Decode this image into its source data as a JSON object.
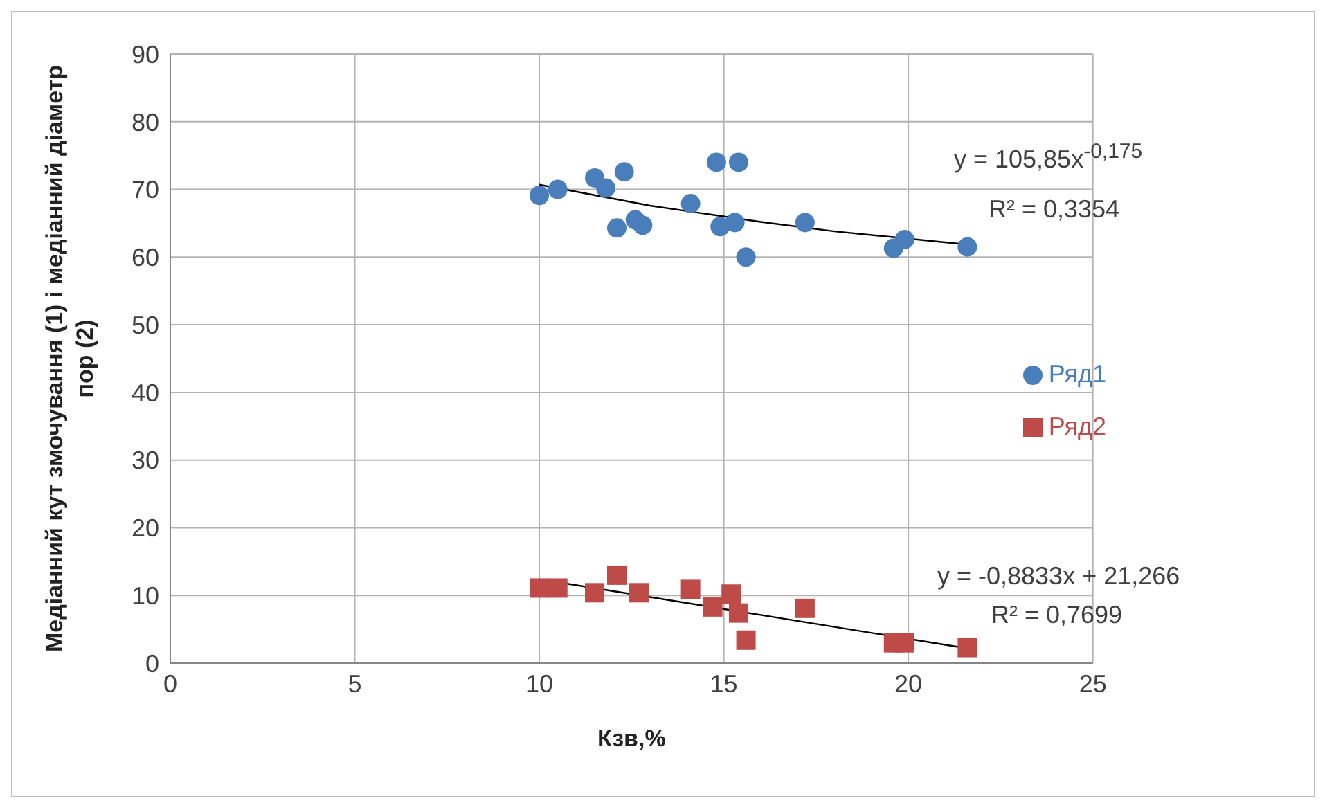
{
  "chart_data": {
    "type": "scatter",
    "xlabel": "Кзв,%",
    "ylabel": "Медіанний кут змочування (1) і медіанний діаметр пор (2)",
    "xlim": [
      0,
      25
    ],
    "xticks": [
      0,
      5,
      10,
      15,
      20,
      25
    ],
    "ylim": [
      0,
      90
    ],
    "yticks": [
      0,
      10,
      20,
      30,
      40,
      50,
      60,
      70,
      80,
      90
    ],
    "grid": true,
    "legend": "right",
    "series": [
      {
        "name": "Ряд1",
        "color": "#4a7ebb",
        "marker": "circle",
        "x": [
          10.0,
          10.5,
          11.5,
          11.8,
          12.3,
          12.1,
          12.6,
          12.8,
          14.1,
          14.8,
          15.4,
          14.9,
          15.3,
          15.6,
          17.2,
          19.9,
          19.6,
          21.6
        ],
        "values": [
          69.1,
          70.0,
          71.7,
          70.2,
          72.6,
          64.3,
          65.5,
          64.7,
          67.9,
          74.0,
          74.0,
          64.5,
          65.1,
          60.0,
          65.1,
          62.6,
          61.3,
          61.5
        ]
      },
      {
        "name": "Ряд2",
        "color": "#be4b48",
        "marker": "square",
        "x": [
          10.0,
          10.5,
          11.5,
          12.1,
          12.7,
          14.1,
          14.7,
          15.2,
          15.4,
          15.6,
          17.2,
          19.6,
          19.9,
          21.6
        ],
        "values": [
          11.1,
          11.1,
          10.4,
          13.0,
          10.4,
          10.9,
          8.3,
          10.2,
          7.4,
          3.4,
          8.1,
          3.0,
          3.0,
          2.3
        ]
      },
      {
        "type": "line",
        "color": "#000000",
        "marker": "none",
        "x": [
          10,
          13,
          16,
          18,
          21.7
        ],
        "values": [
          70.7,
          67.6,
          65.2,
          63.8,
          61.8
        ]
      },
      {
        "type": "line",
        "color": "#000000",
        "marker": "none",
        "x": [
          10,
          21.7
        ],
        "values": [
          12.4,
          2.1
        ]
      }
    ],
    "annotations": [
      "y = 105,85x$^{-0,175}$",
      "R² = 0,3354",
      "y = -0,8833x + 21,266",
      "R² = 0,7699"
    ]
  }
}
